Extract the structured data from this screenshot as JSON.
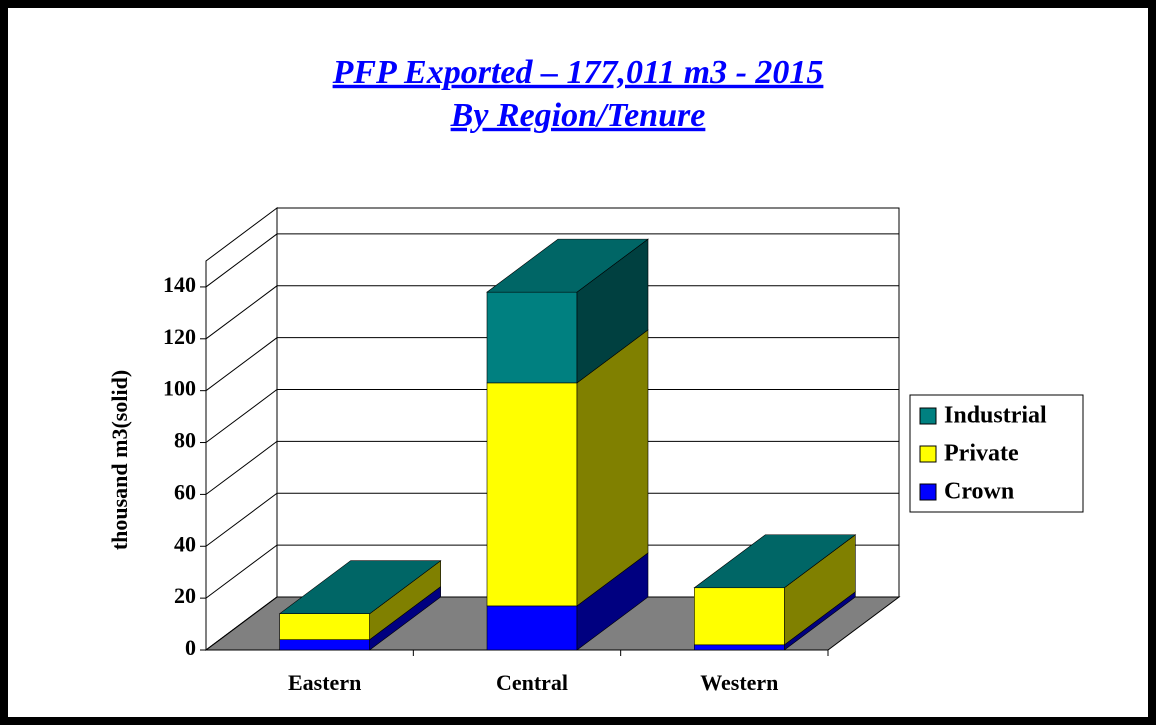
{
  "chart_data": {
    "type": "bar3d_stacked",
    "title": [
      "PFP Exported – 177,011 m3 - 2015",
      "By Region/Tenure"
    ],
    "y_label": "thousand m3(solid)",
    "categories": [
      "Eastern",
      "Central",
      "Western"
    ],
    "series": [
      {
        "name": "Crown",
        "color": "#0000ff",
        "values": [
          4,
          17,
          2
        ]
      },
      {
        "name": "Private",
        "color": "#ffff00",
        "values": [
          10,
          86,
          22
        ]
      },
      {
        "name": "Industrial",
        "color": "#008080",
        "values": [
          0,
          35,
          0
        ]
      }
    ],
    "ylim": [
      0,
      150
    ],
    "yticks": [
      0,
      20,
      40,
      60,
      80,
      100,
      120,
      140
    ],
    "grid": true
  }
}
